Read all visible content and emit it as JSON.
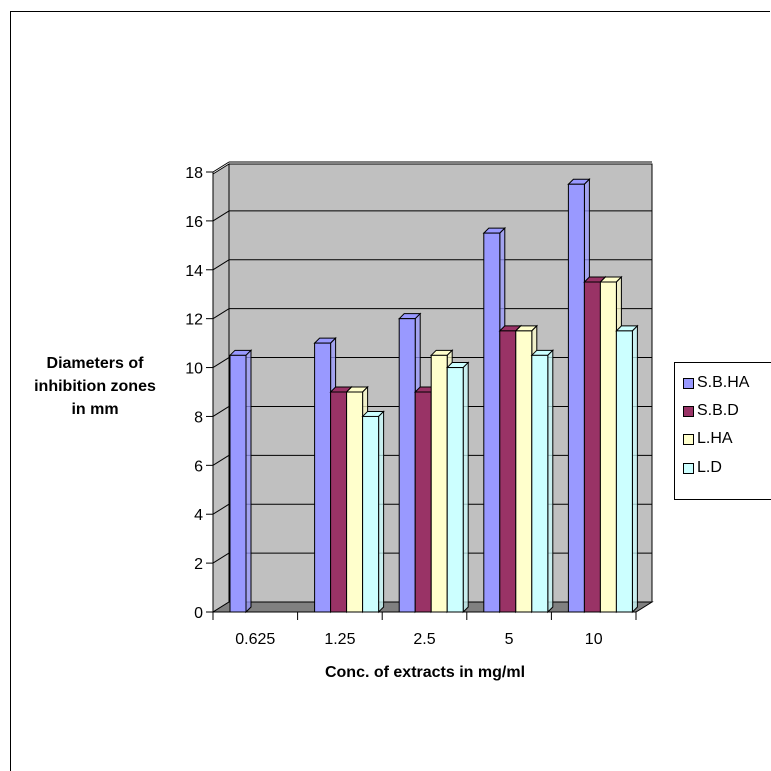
{
  "chart_data": {
    "type": "bar",
    "categories": [
      "0.625",
      "1.25",
      "2.5",
      "5",
      "10"
    ],
    "series": [
      {
        "name": "S.B.HA",
        "values": [
          10.5,
          11,
          12,
          15.5,
          17.5
        ]
      },
      {
        "name": "S.B.D",
        "values": [
          null,
          9,
          9,
          11.5,
          13.5
        ]
      },
      {
        "name": "L.HA",
        "values": [
          null,
          9,
          10.5,
          11.5,
          13.5
        ]
      },
      {
        "name": "L.D",
        "values": [
          null,
          8,
          10,
          10.5,
          11.5
        ]
      }
    ],
    "title": "",
    "xlabel": "Conc. of extracts in  mg/ml",
    "ylabel": "Diameters of inhibition zones in mm",
    "ylim": [
      0,
      18
    ],
    "yticks": [
      "0",
      "2",
      "4",
      "6",
      "8",
      "10",
      "12",
      "14",
      "16",
      "18"
    ],
    "grid": true,
    "legend_position": "right",
    "colors": {
      "S.B.HA": "#9999ff",
      "S.B.D": "#993366",
      "L.HA": "#ffffcc",
      "L.D": "#ccffff",
      "wall": "#c0c0c0",
      "floor": "#808080"
    }
  }
}
